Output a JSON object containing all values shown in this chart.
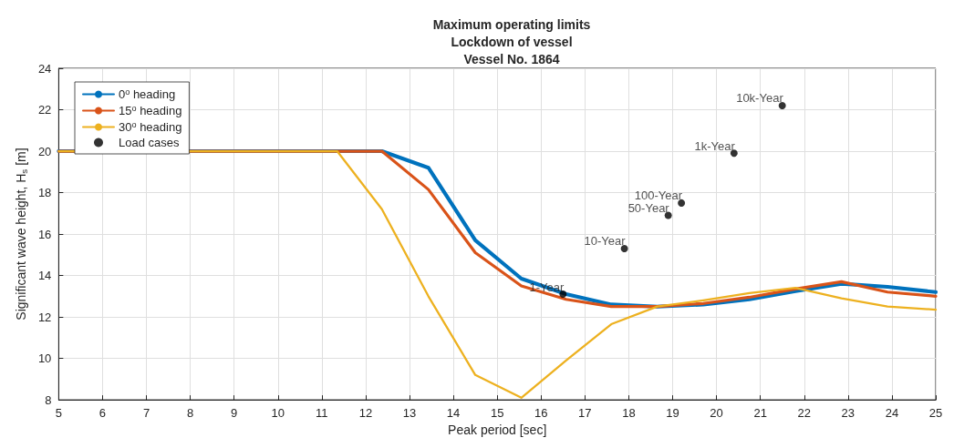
{
  "chart_data": {
    "type": "line",
    "title": "Maximum operating limits\nLockdown of vessel\nVessel No. 1864",
    "xlabel": "Peak period [sec]",
    "ylabel": "Significant wave height, H$_{s}$ [m]",
    "x": [
      5,
      11.35,
      12.37,
      13.43,
      14.5,
      15.55,
      16.57,
      17.6,
      18.65,
      19.7,
      20.75,
      21.8,
      22.85,
      23.9,
      25
    ],
    "series": [
      {
        "name": "0$^{o}$ heading",
        "color": "#0072bd",
        "values": [
          20,
          20,
          20,
          19.2,
          15.7,
          13.85,
          13.1,
          12.6,
          12.5,
          12.6,
          12.85,
          13.25,
          13.6,
          13.45,
          13.2
        ]
      },
      {
        "name": "15$^{o}$ heading",
        "color": "#d95319",
        "values": [
          20,
          20,
          20,
          18.15,
          15.1,
          13.5,
          12.85,
          12.5,
          12.5,
          12.65,
          12.95,
          13.35,
          13.7,
          13.2,
          13.0
        ]
      },
      {
        "name": "30$^{o}$ heading",
        "color": "#edb120",
        "values": [
          20,
          20,
          17.2,
          13.0,
          9.2,
          8.1,
          9.9,
          11.65,
          12.5,
          12.8,
          13.15,
          13.4,
          12.9,
          12.5,
          12.35
        ]
      },
      {
        "name": "Load cases",
        "type": "scatter",
        "marker": "circle",
        "color": "#000000",
        "x": [
          16.5,
          17.9,
          18.9,
          19.2,
          20.4,
          21.5
        ],
        "values": [
          13.1,
          15.3,
          16.9,
          17.5,
          19.9,
          22.2
        ]
      }
    ],
    "annotations": [
      {
        "text": "1-Year",
        "x": 16.5,
        "y": 13.1
      },
      {
        "text": "10-Year",
        "x": 17.9,
        "y": 15.3
      },
      {
        "text": "50-Year",
        "x": 18.9,
        "y": 16.9
      },
      {
        "text": "100-Year",
        "x": 19.2,
        "y": 17.5
      },
      {
        "text": "1k-Year",
        "x": 20.4,
        "y": 19.9
      },
      {
        "text": "10k-Year",
        "x": 21.5,
        "y": 22.2
      }
    ],
    "xlim": [
      5,
      25
    ],
    "xticks": [
      5,
      6,
      7,
      8,
      9,
      10,
      11,
      12,
      13,
      14,
      15,
      16,
      17,
      18,
      19,
      20,
      21,
      22,
      23,
      24,
      25
    ],
    "ylim": [
      8,
      24
    ],
    "yticks": [
      8,
      10,
      12,
      14,
      16,
      18,
      20,
      22,
      24
    ],
    "grid": true,
    "legend": "top left",
    "marker": "none",
    "line_style": "solid"
  }
}
